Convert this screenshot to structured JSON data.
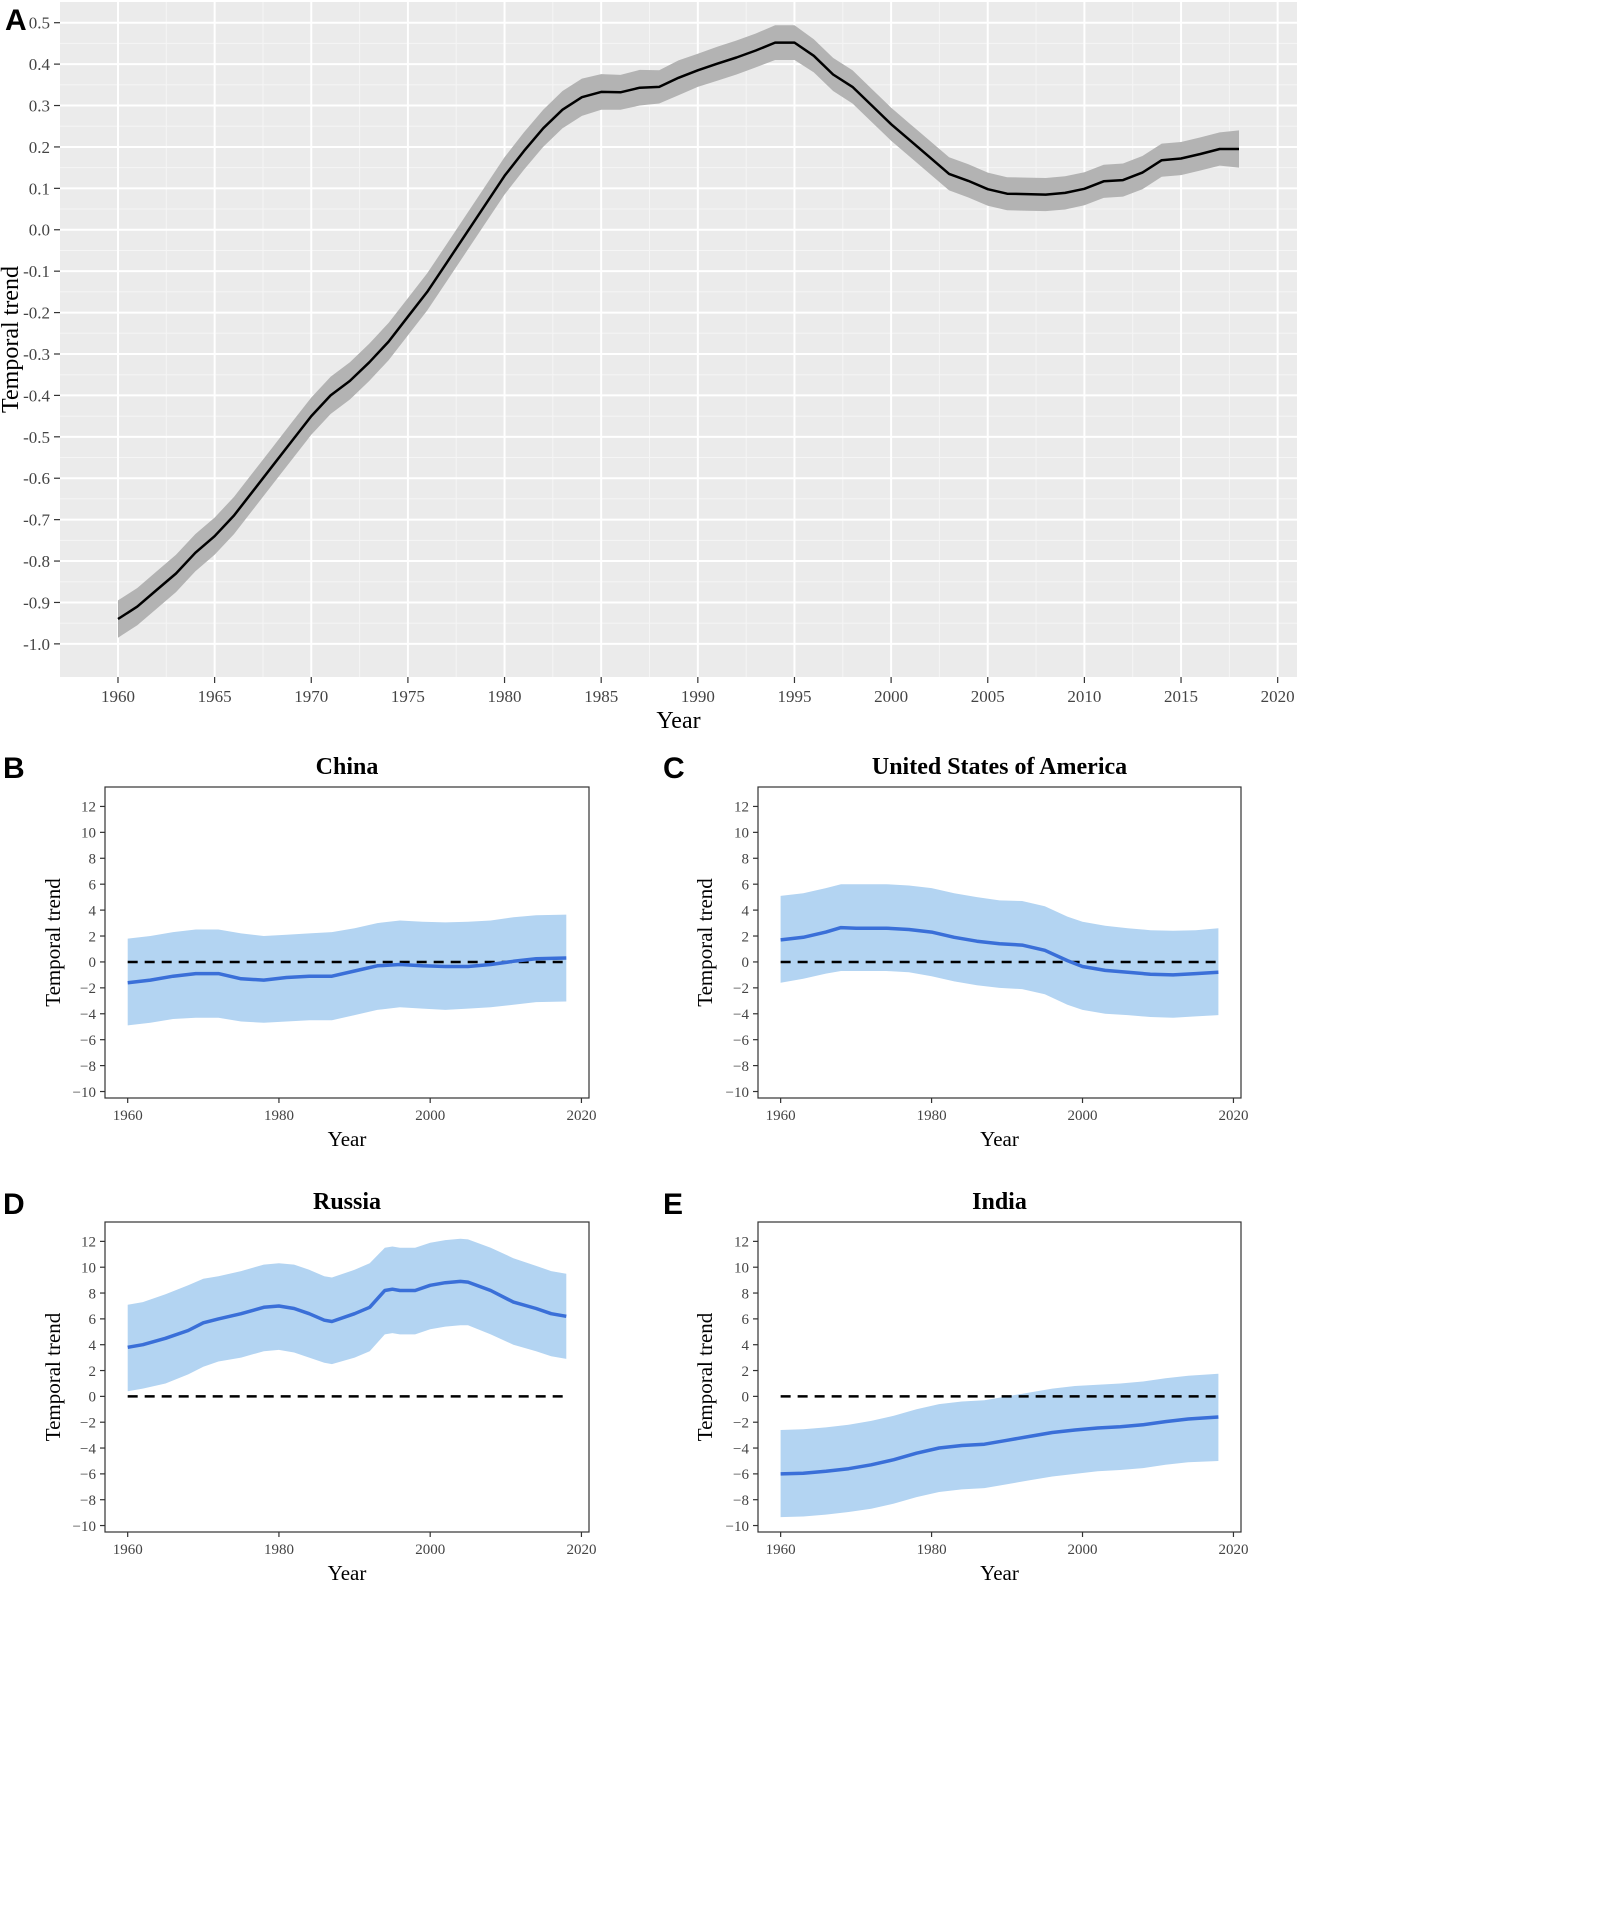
{
  "chart_data": [
    {
      "panel_label": "A",
      "type": "line",
      "title": "",
      "xlabel": "Year",
      "ylabel": "Temporal trend",
      "xlim": [
        1957,
        2021
      ],
      "ylim": [
        -1.08,
        0.55
      ],
      "xticks": [
        1960,
        1965,
        1970,
        1975,
        1980,
        1985,
        1990,
        1995,
        2000,
        2005,
        2010,
        2015,
        2020
      ],
      "yticks": [
        -1.0,
        -0.9,
        -0.8,
        -0.7,
        -0.6,
        -0.5,
        -0.4,
        -0.3,
        -0.2,
        -0.1,
        0.0,
        0.1,
        0.2,
        0.3,
        0.4,
        0.5
      ],
      "ytick_labels": [
        "-1.0",
        "-0.9",
        "-0.8",
        "-0.7",
        "-0.6",
        "-0.5",
        "-0.4",
        "-0.3",
        "-0.2",
        "-0.1",
        "0.0",
        "0.1",
        "0.2",
        "0.3",
        "0.4",
        "0.5"
      ],
      "grid": true,
      "background": "#ebebeb",
      "line_color": "#000000",
      "band_color": "#b3b3b3",
      "series": [
        {
          "x": [
            1960,
            1961,
            1962,
            1963,
            1964,
            1965,
            1966,
            1967,
            1968,
            1969,
            1970,
            1971,
            1972,
            1973,
            1974,
            1975,
            1976,
            1977,
            1978,
            1979,
            1980,
            1981,
            1982,
            1983,
            1984,
            1985,
            1986,
            1987,
            1988,
            1989,
            1990,
            1991,
            1992,
            1993,
            1994,
            1995,
            1996,
            1997,
            1998,
            1999,
            2000,
            2001,
            2002,
            2003,
            2004,
            2005,
            2006,
            2007,
            2008,
            2009,
            2010,
            2011,
            2012,
            2013,
            2014,
            2015,
            2016,
            2017,
            2018
          ],
          "y": [
            -0.94,
            -0.91,
            -0.87,
            -0.83,
            -0.78,
            -0.74,
            -0.69,
            -0.63,
            -0.57,
            -0.51,
            -0.45,
            -0.4,
            -0.365,
            -0.32,
            -0.27,
            -0.21,
            -0.15,
            -0.08,
            -0.01,
            0.06,
            0.13,
            0.19,
            0.245,
            0.29,
            0.32,
            0.333,
            0.332,
            0.343,
            0.345,
            0.367,
            0.385,
            0.401,
            0.416,
            0.433,
            0.452,
            0.452,
            0.42,
            0.375,
            0.345,
            0.3,
            0.255,
            0.215,
            0.175,
            0.135,
            0.118,
            0.098,
            0.087,
            0.086,
            0.085,
            0.089,
            0.099,
            0.117,
            0.12,
            0.138,
            0.168,
            0.172,
            0.183,
            0.195,
            0.195
          ],
          "lower": [
            -0.985,
            -0.955,
            -0.915,
            -0.875,
            -0.825,
            -0.785,
            -0.735,
            -0.675,
            -0.615,
            -0.555,
            -0.495,
            -0.445,
            -0.41,
            -0.365,
            -0.315,
            -0.255,
            -0.195,
            -0.125,
            -0.055,
            0.015,
            0.085,
            0.145,
            0.2,
            0.245,
            0.275,
            0.29,
            0.29,
            0.3,
            0.305,
            0.325,
            0.345,
            0.36,
            0.375,
            0.392,
            0.41,
            0.41,
            0.38,
            0.335,
            0.305,
            0.26,
            0.215,
            0.175,
            0.135,
            0.095,
            0.078,
            0.058,
            0.047,
            0.046,
            0.045,
            0.049,
            0.059,
            0.077,
            0.08,
            0.098,
            0.128,
            0.132,
            0.143,
            0.155,
            0.15
          ],
          "upper": [
            -0.895,
            -0.865,
            -0.825,
            -0.785,
            -0.735,
            -0.695,
            -0.645,
            -0.585,
            -0.525,
            -0.465,
            -0.405,
            -0.355,
            -0.32,
            -0.275,
            -0.225,
            -0.165,
            -0.105,
            -0.035,
            0.035,
            0.105,
            0.175,
            0.235,
            0.29,
            0.335,
            0.365,
            0.376,
            0.374,
            0.386,
            0.385,
            0.409,
            0.425,
            0.442,
            0.457,
            0.474,
            0.494,
            0.494,
            0.46,
            0.415,
            0.385,
            0.34,
            0.295,
            0.255,
            0.215,
            0.175,
            0.158,
            0.138,
            0.127,
            0.126,
            0.125,
            0.129,
            0.139,
            0.157,
            0.16,
            0.178,
            0.208,
            0.212,
            0.223,
            0.235,
            0.24
          ]
        }
      ]
    },
    {
      "panel_label": "B",
      "type": "line",
      "title": "China",
      "xlabel": "Year",
      "ylabel": "Temporal trend",
      "xlim": [
        1957,
        2021
      ],
      "ylim": [
        -10.5,
        13.5
      ],
      "xticks": [
        1960,
        1980,
        2000,
        2020
      ],
      "yticks": [
        -10,
        -8,
        -6,
        -4,
        -2,
        0,
        2,
        4,
        6,
        8,
        10,
        12
      ],
      "ytick_labels": [
        "−10",
        "−8",
        "−6",
        "−4",
        "−2",
        "0",
        "2",
        "4",
        "6",
        "8",
        "10",
        "12"
      ],
      "grid": false,
      "reference_line": 0,
      "line_color": "#3a6fd8",
      "band_color": "#b3d4f2",
      "series": [
        {
          "x": [
            1960,
            1963,
            1966,
            1969,
            1972,
            1975,
            1978,
            1981,
            1984,
            1987,
            1990,
            1993,
            1996,
            1999,
            2002,
            2005,
            2008,
            2011,
            2014,
            2018
          ],
          "y": [
            -1.6,
            -1.4,
            -1.1,
            -0.9,
            -0.9,
            -1.3,
            -1.4,
            -1.2,
            -1.1,
            -1.1,
            -0.7,
            -0.3,
            -0.2,
            -0.3,
            -0.35,
            -0.35,
            -0.2,
            0.05,
            0.25,
            0.3
          ],
          "lower": [
            -4.9,
            -4.7,
            -4.4,
            -4.3,
            -4.3,
            -4.6,
            -4.7,
            -4.6,
            -4.5,
            -4.5,
            -4.1,
            -3.7,
            -3.5,
            -3.6,
            -3.7,
            -3.6,
            -3.5,
            -3.3,
            -3.1,
            -3.05
          ],
          "upper": [
            1.8,
            2.0,
            2.3,
            2.5,
            2.5,
            2.2,
            2.0,
            2.1,
            2.2,
            2.3,
            2.6,
            3.0,
            3.2,
            3.1,
            3.05,
            3.1,
            3.2,
            3.45,
            3.6,
            3.65
          ]
        }
      ]
    },
    {
      "panel_label": "C",
      "type": "line",
      "title": "United States of America",
      "xlabel": "Year",
      "ylabel": "Temporal trend",
      "xlim": [
        1957,
        2021
      ],
      "ylim": [
        -10.5,
        13.5
      ],
      "xticks": [
        1960,
        1980,
        2000,
        2020
      ],
      "yticks": [
        -10,
        -8,
        -6,
        -4,
        -2,
        0,
        2,
        4,
        6,
        8,
        10,
        12
      ],
      "ytick_labels": [
        "−10",
        "−8",
        "−6",
        "−4",
        "−2",
        "0",
        "2",
        "4",
        "6",
        "8",
        "10",
        "12"
      ],
      "grid": false,
      "reference_line": 0,
      "line_color": "#3a6fd8",
      "band_color": "#b3d4f2",
      "series": [
        {
          "x": [
            1960,
            1963,
            1966,
            1968,
            1970,
            1974,
            1977,
            1980,
            1983,
            1986,
            1989,
            1992,
            1995,
            1998,
            2000,
            2003,
            2006,
            2009,
            2012,
            2015,
            2018
          ],
          "y": [
            1.7,
            1.9,
            2.3,
            2.65,
            2.6,
            2.6,
            2.5,
            2.3,
            1.9,
            1.6,
            1.4,
            1.3,
            0.9,
            0.1,
            -0.35,
            -0.65,
            -0.8,
            -0.95,
            -1.0,
            -0.9,
            -0.8
          ],
          "lower": [
            -1.6,
            -1.3,
            -0.9,
            -0.7,
            -0.7,
            -0.7,
            -0.8,
            -1.1,
            -1.5,
            -1.8,
            -2.0,
            -2.1,
            -2.5,
            -3.3,
            -3.7,
            -4.0,
            -4.1,
            -4.25,
            -4.3,
            -4.2,
            -4.1
          ],
          "upper": [
            5.1,
            5.3,
            5.7,
            6.0,
            6.0,
            6.0,
            5.9,
            5.7,
            5.3,
            5.0,
            4.75,
            4.7,
            4.3,
            3.5,
            3.1,
            2.8,
            2.6,
            2.45,
            2.4,
            2.45,
            2.6
          ]
        }
      ]
    },
    {
      "panel_label": "D",
      "type": "line",
      "title": "Russia",
      "xlabel": "Year",
      "ylabel": "Temporal trend",
      "xlim": [
        1957,
        2021
      ],
      "ylim": [
        -10.5,
        13.5
      ],
      "xticks": [
        1960,
        1980,
        2000,
        2020
      ],
      "yticks": [
        -10,
        -8,
        -6,
        -4,
        -2,
        0,
        2,
        4,
        6,
        8,
        10,
        12
      ],
      "ytick_labels": [
        "−10",
        "−8",
        "−6",
        "−4",
        "−2",
        "0",
        "2",
        "4",
        "6",
        "8",
        "10",
        "12"
      ],
      "grid": false,
      "reference_line": 0,
      "line_color": "#3a6fd8",
      "band_color": "#b3d4f2",
      "series": [
        {
          "x": [
            1960,
            1962,
            1965,
            1968,
            1970,
            1972,
            1975,
            1978,
            1980,
            1982,
            1984,
            1986,
            1987,
            1990,
            1992,
            1994,
            1995,
            1996,
            1998,
            2000,
            2002,
            2004,
            2005,
            2008,
            2011,
            2014,
            2016,
            2018
          ],
          "y": [
            3.8,
            4.0,
            4.5,
            5.1,
            5.7,
            6.0,
            6.4,
            6.9,
            7.0,
            6.8,
            6.4,
            5.9,
            5.8,
            6.4,
            6.9,
            8.2,
            8.3,
            8.2,
            8.2,
            8.6,
            8.8,
            8.9,
            8.85,
            8.2,
            7.3,
            6.8,
            6.4,
            6.2
          ],
          "lower": [
            0.4,
            0.6,
            1.0,
            1.7,
            2.3,
            2.7,
            3.0,
            3.5,
            3.6,
            3.4,
            3.0,
            2.6,
            2.5,
            3.0,
            3.5,
            4.8,
            4.9,
            4.8,
            4.8,
            5.2,
            5.4,
            5.5,
            5.5,
            4.8,
            4.0,
            3.5,
            3.1,
            2.9
          ],
          "upper": [
            7.1,
            7.3,
            7.9,
            8.6,
            9.1,
            9.3,
            9.7,
            10.2,
            10.3,
            10.2,
            9.8,
            9.3,
            9.2,
            9.8,
            10.3,
            11.5,
            11.6,
            11.5,
            11.5,
            11.9,
            12.1,
            12.2,
            12.15,
            11.5,
            10.7,
            10.1,
            9.7,
            9.5
          ]
        }
      ]
    },
    {
      "panel_label": "E",
      "type": "line",
      "title": "India",
      "xlabel": "Year",
      "ylabel": "Temporal trend",
      "xlim": [
        1957,
        2021
      ],
      "ylim": [
        -10.5,
        13.5
      ],
      "xticks": [
        1960,
        1980,
        2000,
        2020
      ],
      "yticks": [
        -10,
        -8,
        -6,
        -4,
        -2,
        0,
        2,
        4,
        6,
        8,
        10,
        12
      ],
      "ytick_labels": [
        "−10",
        "−8",
        "−6",
        "−4",
        "−2",
        "0",
        "2",
        "4",
        "6",
        "8",
        "10",
        "12"
      ],
      "grid": false,
      "reference_line": 0,
      "line_color": "#3a6fd8",
      "band_color": "#b3d4f2",
      "series": [
        {
          "x": [
            1960,
            1963,
            1966,
            1969,
            1972,
            1975,
            1978,
            1981,
            1984,
            1987,
            1990,
            1993,
            1996,
            1999,
            2002,
            2005,
            2008,
            2011,
            2014,
            2018
          ],
          "y": [
            -6.0,
            -5.95,
            -5.8,
            -5.6,
            -5.3,
            -4.9,
            -4.4,
            -4.0,
            -3.8,
            -3.7,
            -3.4,
            -3.1,
            -2.8,
            -2.6,
            -2.45,
            -2.35,
            -2.2,
            -1.95,
            -1.75,
            -1.6
          ],
          "lower": [
            -9.35,
            -9.3,
            -9.15,
            -8.95,
            -8.7,
            -8.3,
            -7.8,
            -7.4,
            -7.2,
            -7.1,
            -6.8,
            -6.5,
            -6.2,
            -6.0,
            -5.8,
            -5.7,
            -5.55,
            -5.3,
            -5.1,
            -5.0
          ],
          "upper": [
            -2.6,
            -2.55,
            -2.4,
            -2.2,
            -1.9,
            -1.5,
            -1.0,
            -0.6,
            -0.4,
            -0.3,
            0.0,
            0.3,
            0.6,
            0.8,
            0.9,
            1.0,
            1.15,
            1.4,
            1.6,
            1.75
          ]
        }
      ]
    }
  ]
}
